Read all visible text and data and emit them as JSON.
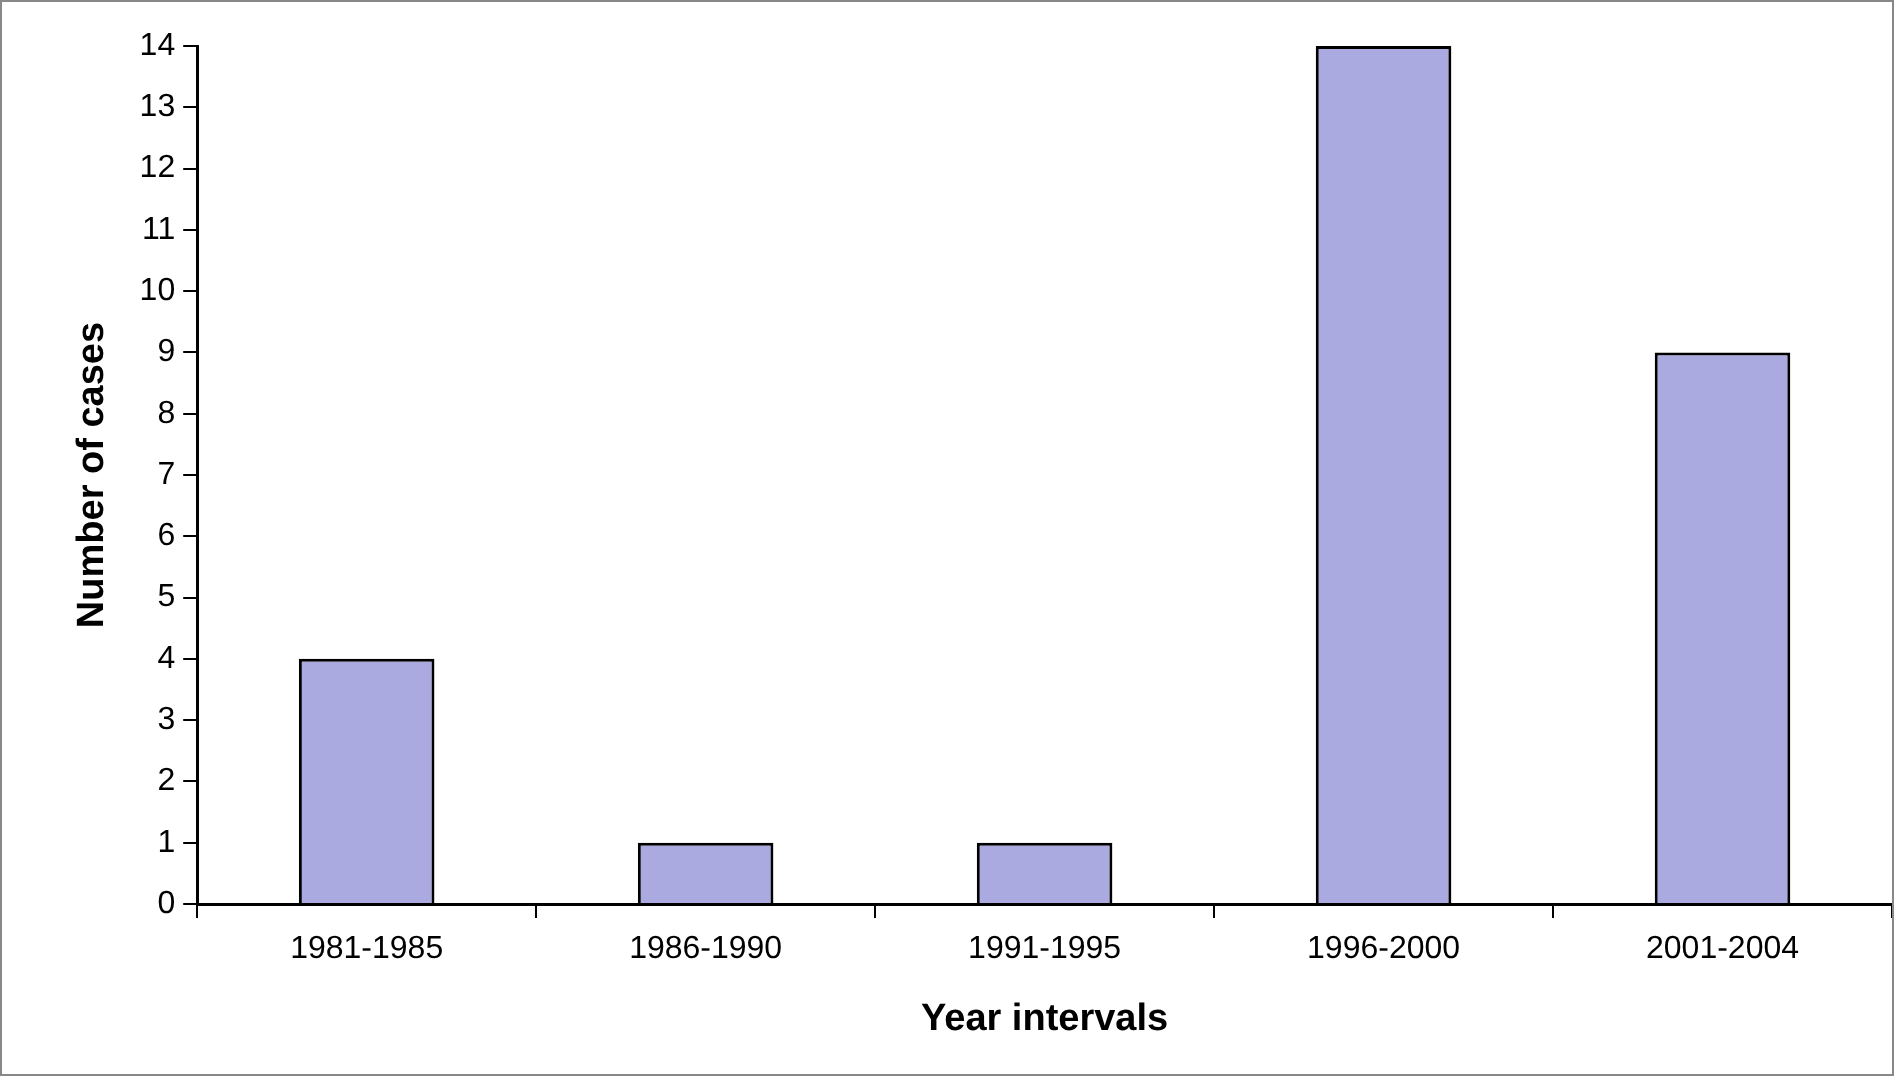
{
  "chart_data": {
    "type": "bar",
    "xlabel": "Year intervals",
    "ylabel": "Number of cases",
    "categories": [
      "1981-1985",
      "1986-1990",
      "1991-1995",
      "1996-2000",
      "2001-2004"
    ],
    "values": [
      4,
      1,
      1,
      14,
      9
    ],
    "color": "#aaaae0",
    "ylim": [
      0,
      14
    ],
    "yticks": [
      0,
      1,
      2,
      3,
      4,
      5,
      6,
      7,
      8,
      9,
      10,
      11,
      12,
      13,
      14
    ],
    "legend": false
  }
}
